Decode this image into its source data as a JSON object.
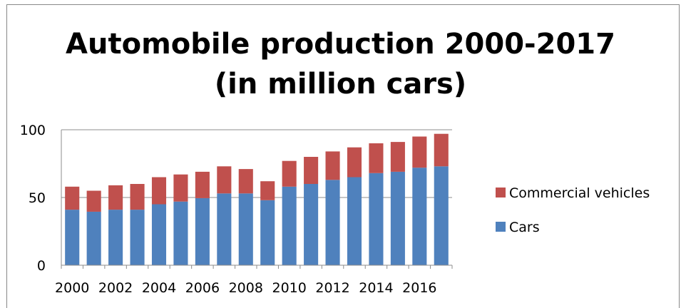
{
  "chart_data": {
    "type": "bar",
    "stacked": true,
    "title_lines": [
      "Automobile production 2000-2017",
      "(in million cars)"
    ],
    "categories": [
      "2000",
      "2001",
      "2002",
      "2003",
      "2004",
      "2005",
      "2006",
      "2007",
      "2008",
      "2009",
      "2010",
      "2011",
      "2012",
      "2013",
      "2014",
      "2015",
      "2016",
      "2017"
    ],
    "x_tick_labels": [
      "2000",
      "2002",
      "2004",
      "2006",
      "2008",
      "2010",
      "2012",
      "2014",
      "2016"
    ],
    "series": [
      {
        "name": "Cars",
        "color": "#4f81bd",
        "values": [
          41,
          39.5,
          41,
          41,
          45,
          47,
          49.5,
          53,
          53,
          48,
          58,
          60,
          63,
          65,
          68,
          69,
          72,
          73
        ]
      },
      {
        "name": "Commercial vehicles",
        "color": "#c0504d",
        "values": [
          17,
          15.5,
          18,
          19,
          20,
          20,
          19.5,
          20,
          18,
          14,
          19,
          20,
          21,
          22,
          22,
          22,
          23,
          24
        ]
      }
    ],
    "ylim": [
      0,
      100
    ],
    "y_ticks": [
      0,
      50,
      100
    ],
    "grid": "horizontal",
    "legend": "right"
  }
}
